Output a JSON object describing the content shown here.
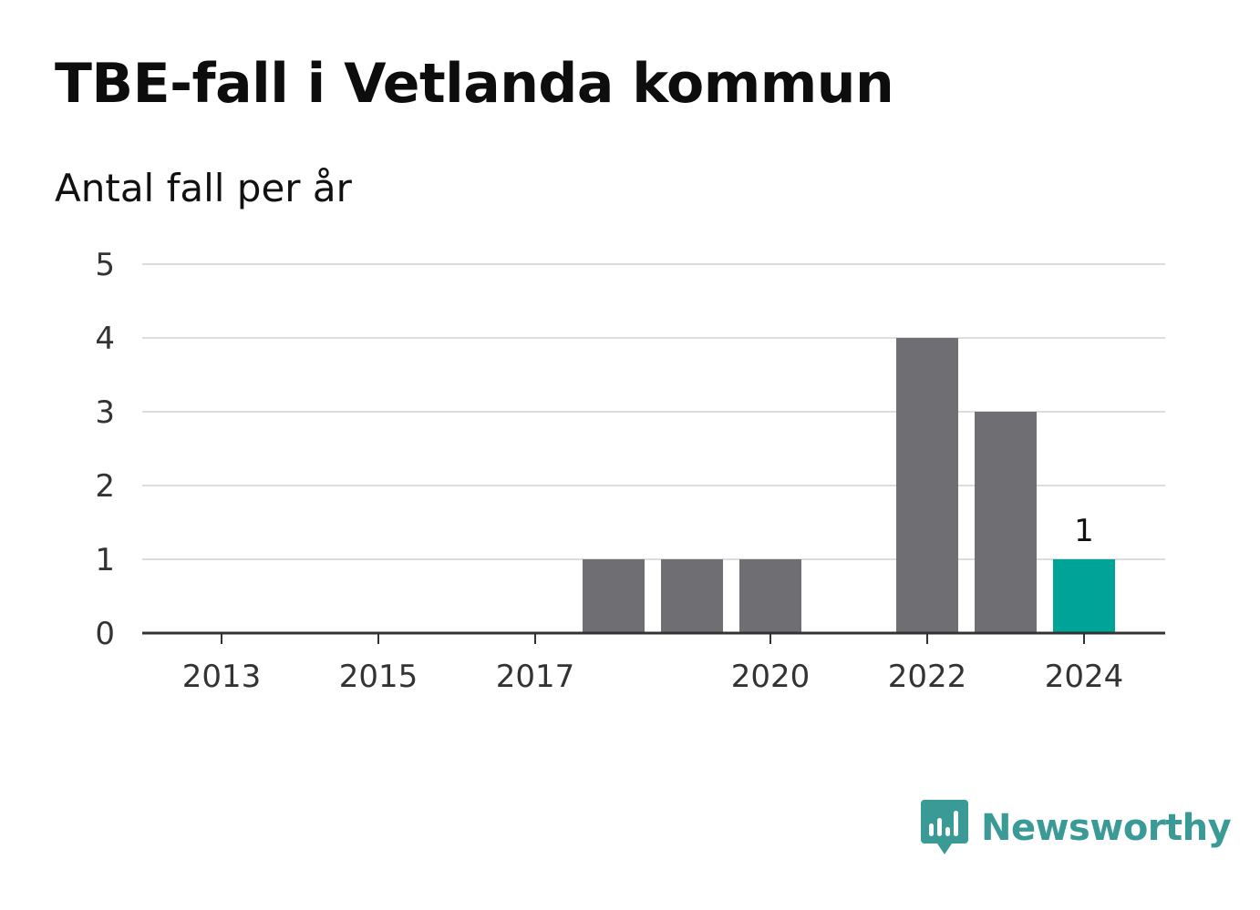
{
  "header": {
    "title": "TBE-fall i Vetlanda kommun",
    "subtitle": "Antal fall per år"
  },
  "brand": {
    "name": "Newsworthy",
    "icon": "newsworthy-logo-icon",
    "color": "#3a9a95"
  },
  "colors": {
    "bar": "#6f6e73",
    "highlight": "#00a398",
    "grid": "#dddddd",
    "axis": "#333333"
  },
  "chart_data": {
    "type": "bar",
    "categories": [
      "2013",
      "2014",
      "2015",
      "2016",
      "2017",
      "2018",
      "2019",
      "2020",
      "2021",
      "2022",
      "2023",
      "2024"
    ],
    "values": [
      0,
      0,
      0,
      0,
      0,
      1,
      1,
      1,
      0,
      4,
      3,
      1
    ],
    "x_tick_labels": [
      "2013",
      "2015",
      "2017",
      "2020",
      "2022",
      "2024"
    ],
    "y_ticks": [
      0,
      1,
      2,
      3,
      4,
      5
    ],
    "ylim": [
      0,
      5
    ],
    "highlight_category": "2024",
    "data_labels": [
      {
        "category": "2024",
        "text": "1"
      }
    ],
    "title": "TBE-fall i Vetlanda kommun",
    "ylabel": "Antal fall per år",
    "xlabel": "",
    "grid": true,
    "legend": "none"
  }
}
